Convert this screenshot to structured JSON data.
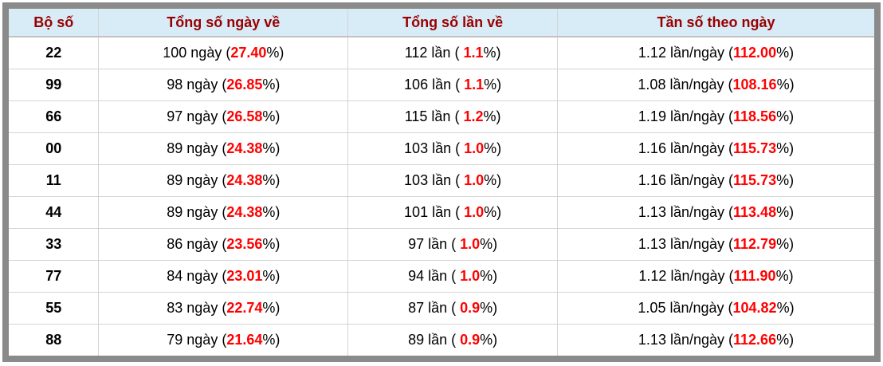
{
  "table": {
    "headers": [
      "Bộ số",
      "Tổng số ngày về",
      "Tổng số lần về",
      "Tần số theo ngày"
    ],
    "rows": [
      {
        "set": "22",
        "cols": [
          {
            "pre": "100 ngày (",
            "red": "27.40",
            "post": "%)"
          },
          {
            "pre": "112 lần ( ",
            "red": "1.1",
            "post": "%)"
          },
          {
            "pre": "1.12 lần/ngày (",
            "red": "112.00",
            "post": "%)"
          }
        ]
      },
      {
        "set": "99",
        "cols": [
          {
            "pre": "98 ngày (",
            "red": "26.85",
            "post": "%)"
          },
          {
            "pre": "106 lần ( ",
            "red": "1.1",
            "post": "%)"
          },
          {
            "pre": "1.08 lần/ngày (",
            "red": "108.16",
            "post": "%)"
          }
        ]
      },
      {
        "set": "66",
        "cols": [
          {
            "pre": "97 ngày (",
            "red": "26.58",
            "post": "%)"
          },
          {
            "pre": "115 lần ( ",
            "red": "1.2",
            "post": "%)"
          },
          {
            "pre": "1.19 lần/ngày (",
            "red": "118.56",
            "post": "%)"
          }
        ]
      },
      {
        "set": "00",
        "cols": [
          {
            "pre": "89 ngày (",
            "red": "24.38",
            "post": "%)"
          },
          {
            "pre": "103 lần ( ",
            "red": "1.0",
            "post": "%)"
          },
          {
            "pre": "1.16 lần/ngày (",
            "red": "115.73",
            "post": "%)"
          }
        ]
      },
      {
        "set": "11",
        "cols": [
          {
            "pre": "89 ngày (",
            "red": "24.38",
            "post": "%)"
          },
          {
            "pre": "103 lần ( ",
            "red": "1.0",
            "post": "%)"
          },
          {
            "pre": "1.16 lần/ngày (",
            "red": "115.73",
            "post": "%)"
          }
        ]
      },
      {
        "set": "44",
        "cols": [
          {
            "pre": "89 ngày (",
            "red": "24.38",
            "post": "%)"
          },
          {
            "pre": "101 lần ( ",
            "red": "1.0",
            "post": "%)"
          },
          {
            "pre": "1.13 lần/ngày (",
            "red": "113.48",
            "post": "%)"
          }
        ]
      },
      {
        "set": "33",
        "cols": [
          {
            "pre": "86 ngày (",
            "red": "23.56",
            "post": "%)"
          },
          {
            "pre": "97 lần ( ",
            "red": "1.0",
            "post": "%)"
          },
          {
            "pre": "1.13 lần/ngày (",
            "red": "112.79",
            "post": "%)"
          }
        ]
      },
      {
        "set": "77",
        "cols": [
          {
            "pre": "84 ngày (",
            "red": "23.01",
            "post": "%)"
          },
          {
            "pre": "94 lần ( ",
            "red": "1.0",
            "post": "%)"
          },
          {
            "pre": "1.12 lần/ngày (",
            "red": "111.90",
            "post": "%)"
          }
        ]
      },
      {
        "set": "55",
        "cols": [
          {
            "pre": "83 ngày (",
            "red": "22.74",
            "post": "%)"
          },
          {
            "pre": "87 lần ( ",
            "red": "0.9",
            "post": "%)"
          },
          {
            "pre": "1.05 lần/ngày (",
            "red": "104.82",
            "post": "%)"
          }
        ]
      },
      {
        "set": "88",
        "cols": [
          {
            "pre": "79 ngày (",
            "red": "21.64",
            "post": "%)"
          },
          {
            "pre": "89 lần ( ",
            "red": "0.9",
            "post": "%)"
          },
          {
            "pre": "1.13 lần/ngày (",
            "red": "112.66",
            "post": "%)"
          }
        ]
      }
    ]
  },
  "colors": {
    "frame_gray": "#8a8a8a",
    "header_bg": "#d8ecf7",
    "header_text": "#990000",
    "accent_red": "#ff0000",
    "cell_border": "#d4d4d4"
  }
}
